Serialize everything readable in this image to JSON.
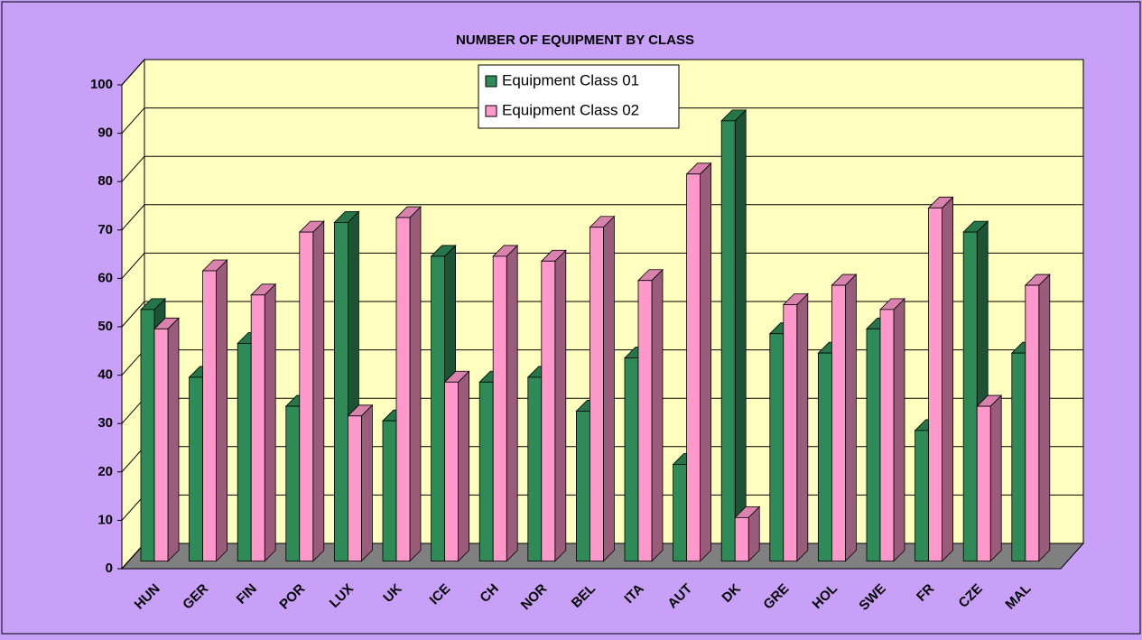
{
  "chart_data": {
    "type": "bar3d",
    "title": "NUMBER OF EQUIPMENT BY CLASS",
    "categories": [
      "HUN",
      "GER",
      "FIN",
      "POR",
      "LUX",
      "UK",
      "ICE",
      "CH",
      "NOR",
      "BEL",
      "ITA",
      "AUT",
      "DK",
      "GRE",
      "HOL",
      "SWE",
      "FR",
      "CZE",
      "MAL"
    ],
    "series": [
      {
        "name": "Equipment Class 01",
        "color": "#2e8b57",
        "values": [
          52,
          38,
          45,
          32,
          70,
          29,
          63,
          37,
          38,
          31,
          42,
          20,
          91,
          47,
          43,
          48,
          27,
          68,
          43
        ]
      },
      {
        "name": "Equipment Class 02",
        "color": "#ff99cc",
        "values": [
          48,
          60,
          55,
          68,
          30,
          71,
          37,
          63,
          62,
          69,
          58,
          80,
          9,
          53,
          57,
          52,
          73,
          32,
          57
        ]
      }
    ],
    "ylim": [
      0,
      100
    ],
    "yticks": [
      0,
      10,
      20,
      30,
      40,
      50,
      60,
      70,
      80,
      90,
      100
    ],
    "grid": true,
    "legend": "top"
  }
}
